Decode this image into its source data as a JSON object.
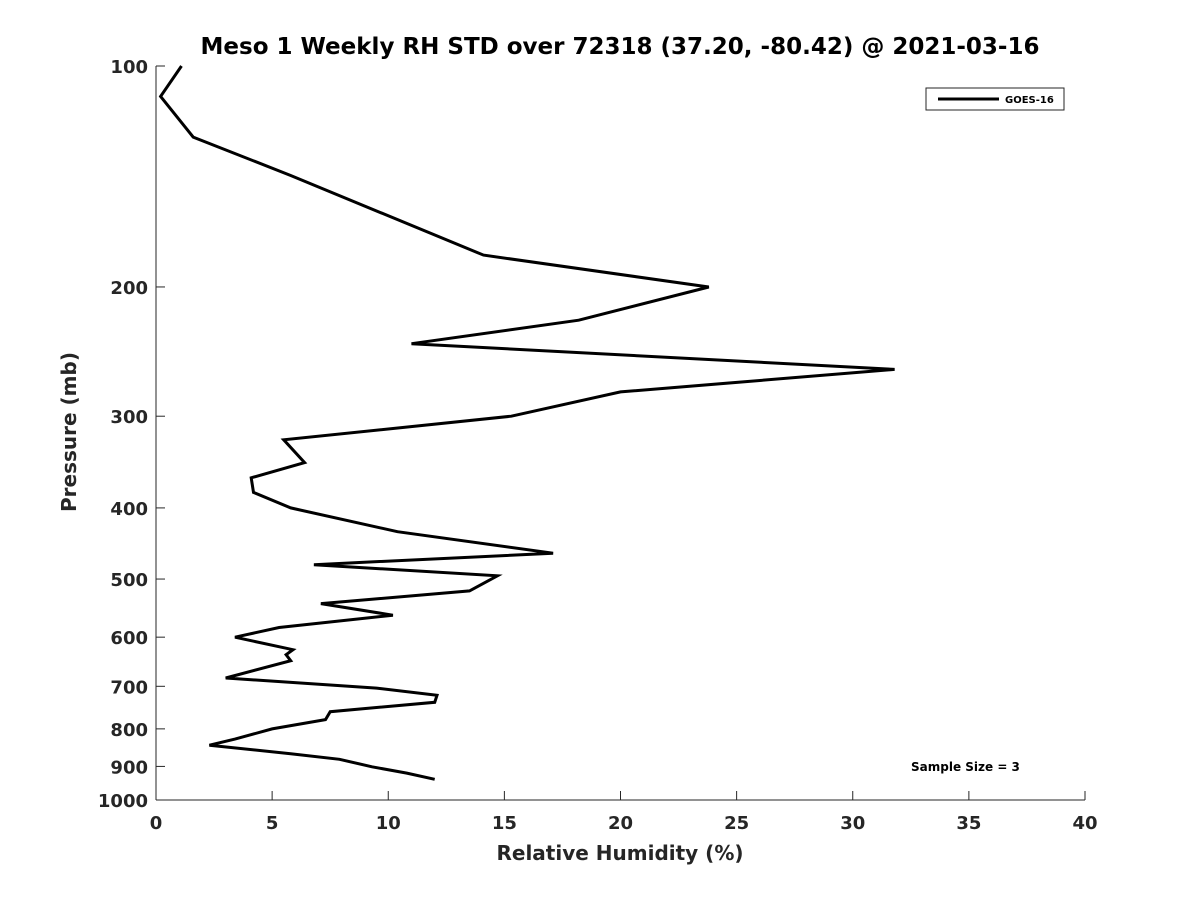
{
  "chart_data": {
    "type": "line",
    "title": "Meso 1 Weekly RH STD over 72318 (37.20, -80.42) @ 2021-03-16",
    "xlabel": "Relative Humidity (%)",
    "ylabel": "Pressure (mb)",
    "xlim": [
      0,
      40
    ],
    "ylim": [
      100,
      1000
    ],
    "y_scale": "log",
    "y_reversed": true,
    "grid": false,
    "legend_position": "top-right",
    "x_ticks": [
      "0",
      "5",
      "10",
      "15",
      "20",
      "25",
      "30",
      "35",
      "40"
    ],
    "y_ticks": [
      "100",
      "200",
      "300",
      "400",
      "500",
      "600",
      "700",
      "800",
      "900",
      "1000"
    ],
    "series": [
      {
        "name": "GOES-16",
        "color": "#000000",
        "x": [
          1.1,
          0.2,
          1.6,
          5.8,
          14.1,
          23.8,
          18.2,
          11.0,
          31.8,
          20.0,
          15.3,
          5.5,
          6.4,
          4.1,
          4.2,
          5.8,
          10.4,
          17.1,
          6.8,
          14.7,
          13.5,
          7.1,
          10.2,
          5.3,
          3.4,
          5.9,
          5.6,
          5.8,
          3.0,
          9.5,
          12.1,
          12.0,
          7.5,
          7.3,
          5.0,
          3.4,
          2.3,
          5.8,
          7.9,
          9.3,
          10.8,
          12.0
        ],
        "y": [
          100,
          110,
          125,
          141,
          181,
          200,
          222,
          239,
          259,
          278,
          300,
          323,
          347,
          364,
          381,
          400,
          431,
          461,
          478,
          495,
          519,
          540,
          560,
          582,
          600,
          624,
          634,
          646,
          682,
          704,
          720,
          736,
          758,
          777,
          800,
          826,
          842,
          865,
          880,
          901,
          919,
          937
        ]
      }
    ],
    "annotations": [
      "Sample Size = 3"
    ]
  }
}
